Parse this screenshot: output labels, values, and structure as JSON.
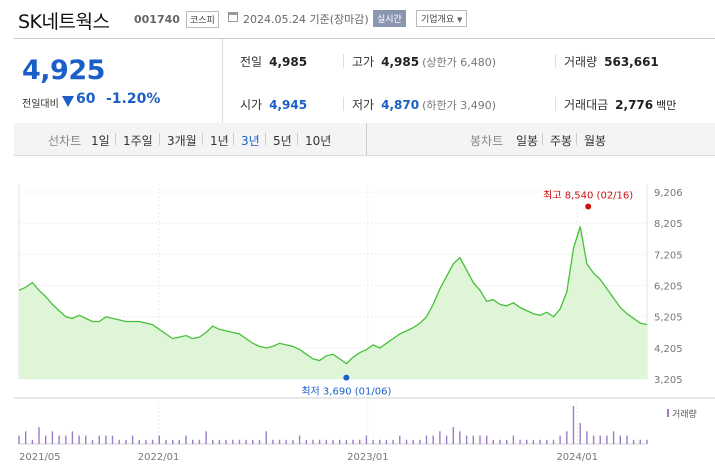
{
  "header": {
    "name": "SK네트웍스",
    "code": "001740",
    "market": "코스피",
    "date": "2024.05.24 기준(장마감)",
    "realtime_button": "실시간",
    "company_info_select": "기업개요"
  },
  "summary": {
    "current_price": "4,925",
    "change_label": "전일대비",
    "change_value": "60",
    "change_pct": "-1.20%",
    "direction": "down",
    "prev_close_label": "전일",
    "prev_close": "4,985",
    "high_label": "고가",
    "high": "4,985",
    "upper_limit_label": "(상한가 6,480)",
    "volume_label": "거래량",
    "volume": "563,661",
    "open_label": "시가",
    "open": "4,945",
    "low_label": "저가",
    "low": "4,870",
    "lower_limit_label": "(하한가 3,490)",
    "trade_value_label": "거래대금",
    "trade_value": "2,776",
    "trade_value_unit": "백만",
    "down_color": "#1a5fc7"
  },
  "tabs": {
    "line_chart_label": "선차트",
    "periods": [
      "1일",
      "1주일",
      "3개월",
      "1년",
      "3년",
      "5년",
      "10년"
    ],
    "selected_period": "3년",
    "candle_chart_label": "봉차트",
    "candle_periods": [
      "일봉",
      "주봉",
      "월봉"
    ]
  },
  "chart_data": {
    "type": "area",
    "y_ticks": [
      "9,206",
      "8,205",
      "7,205",
      "6,205",
      "5,205",
      "4,205",
      "3,205"
    ],
    "ylim": [
      3205,
      9206
    ],
    "x_ticks": [
      "2021/05",
      "2022/01",
      "2023/01",
      "2024/01"
    ],
    "x_range": [
      "2021/05",
      "2024/05"
    ],
    "series": [
      {
        "values": [
          6050,
          6150,
          6300,
          6050,
          5850,
          5600,
          5400,
          5200,
          5150,
          5250,
          5150,
          5050,
          5050,
          5200,
          5150,
          5100,
          5050,
          5050,
          5050,
          5000,
          4950,
          4800,
          4650,
          4500,
          4550,
          4600,
          4500,
          4550,
          4700,
          4900,
          4800,
          4750,
          4700,
          4650,
          4500,
          4350,
          4250,
          4200,
          4250,
          4350,
          4300,
          4250,
          4150,
          4000,
          3850,
          3800,
          3950,
          4000,
          3850,
          3700,
          3900,
          4050,
          4150,
          4300,
          4200,
          4350,
          4500,
          4650,
          4750,
          4850,
          5000,
          5200,
          5600,
          6100,
          6500,
          6900,
          7100,
          6700,
          6300,
          6050,
          5700,
          5750,
          5600,
          5550,
          5650,
          5500,
          5400,
          5300,
          5250,
          5350,
          5200,
          5450,
          6000,
          7400,
          8100,
          6900,
          6600,
          6400,
          6100,
          5800,
          5500,
          5300,
          5150,
          5000,
          4950
        ],
        "color": "#48c03a",
        "fill": "#dff5d7"
      }
    ],
    "annotations": {
      "high_label": "최고 8,540 (02/16)",
      "low_label": "최저 3,690 (01/06)",
      "high_color": "#cc1010",
      "low_color": "#1a5fc7"
    },
    "volume": {
      "label": "거래량",
      "values": [
        2,
        3,
        1,
        4,
        2,
        3,
        2,
        2,
        3,
        2,
        2,
        1,
        2,
        2,
        2,
        1,
        1,
        2,
        1,
        1,
        1,
        2,
        1,
        1,
        1,
        2,
        1,
        1,
        3,
        1,
        1,
        1,
        1,
        1,
        1,
        1,
        1,
        3,
        1,
        1,
        1,
        1,
        2,
        1,
        1,
        1,
        1,
        1,
        1,
        1,
        1,
        1,
        2,
        1,
        1,
        1,
        1,
        2,
        1,
        1,
        1,
        2,
        2,
        3,
        2,
        4,
        3,
        2,
        2,
        2,
        2,
        1,
        1,
        1,
        2,
        1,
        1,
        1,
        1,
        1,
        1,
        2,
        3,
        9,
        5,
        3,
        2,
        2,
        2,
        3,
        2,
        2,
        1,
        1,
        1
      ],
      "color": "#9b7cc8"
    }
  }
}
